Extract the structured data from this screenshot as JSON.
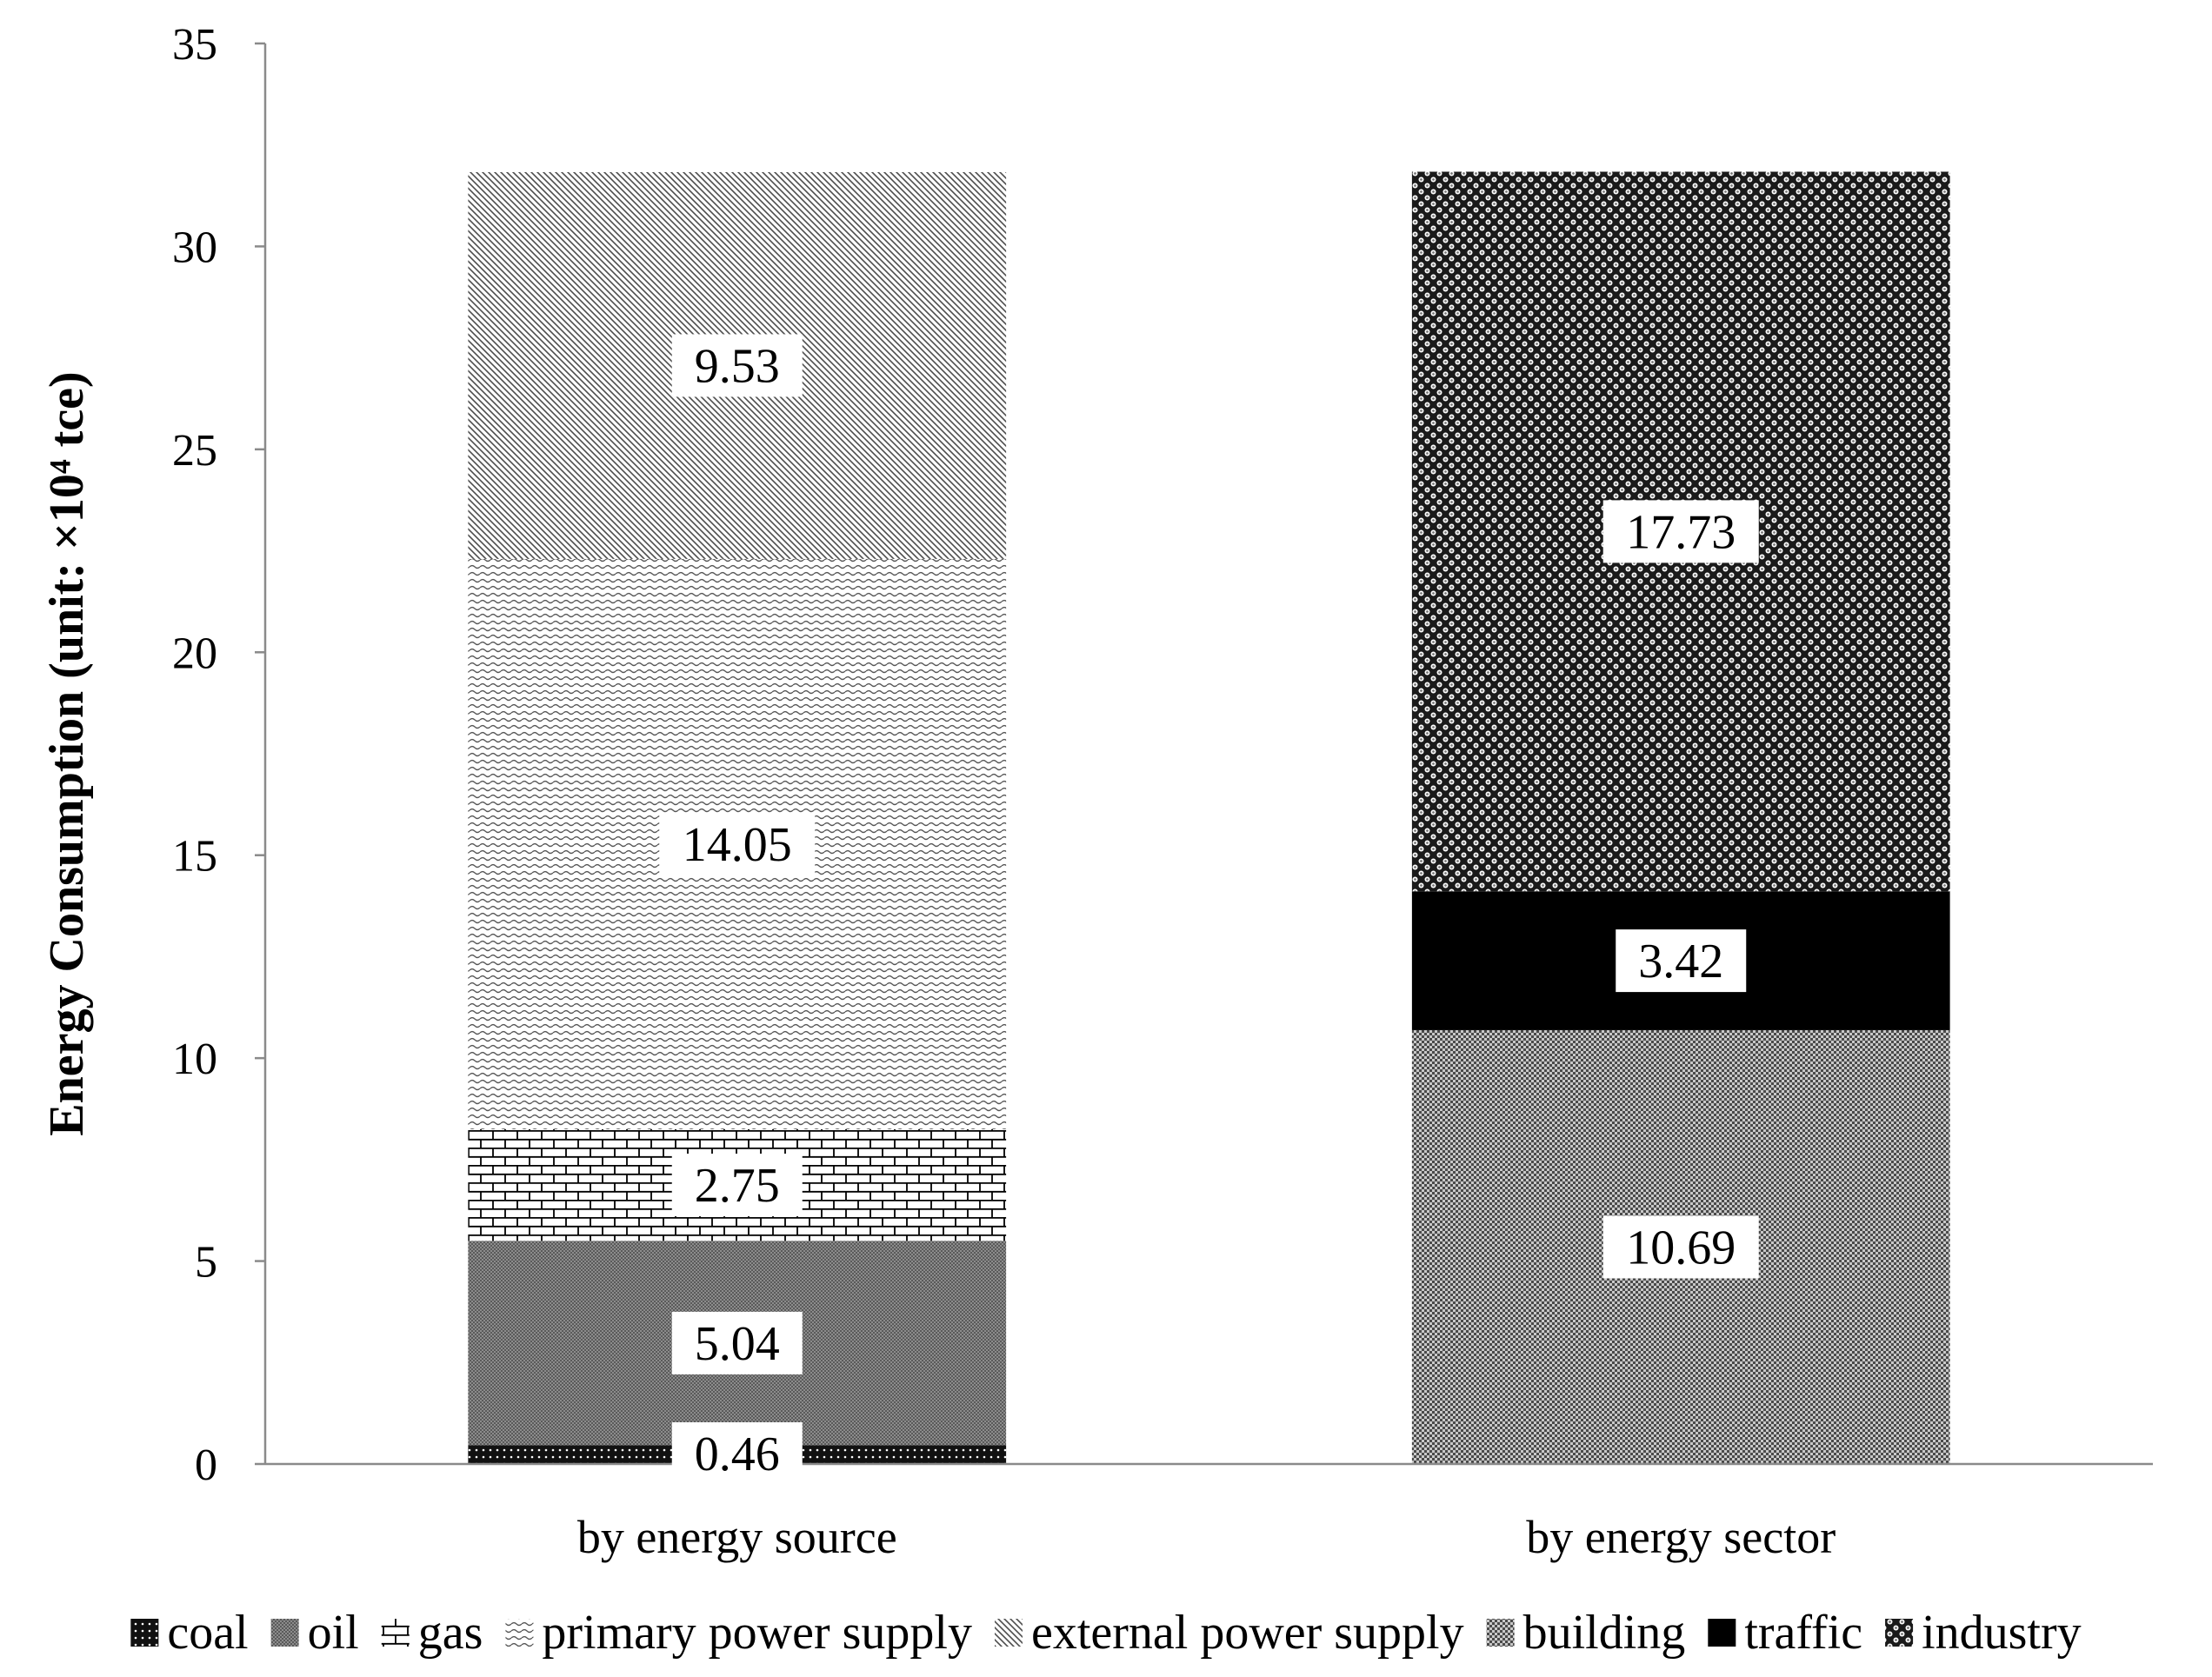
{
  "chart_data": {
    "type": "bar",
    "stacked": true,
    "ylabel": "Energy Consumption (unit: ×10⁴ tce)",
    "xlabel": "",
    "ylim": [
      0,
      35
    ],
    "yticks": [
      "0",
      "5",
      "10",
      "15",
      "20",
      "25",
      "30",
      "35"
    ],
    "grid": false,
    "legend_position": "bottom",
    "categories": [
      "by energy source",
      "by energy sector"
    ],
    "series": [
      {
        "name": "coal",
        "pattern": "dots-black",
        "values": [
          0.46,
          null
        ],
        "labels": [
          "0.46",
          ""
        ]
      },
      {
        "name": "oil",
        "pattern": "fine-gray",
        "values": [
          5.04,
          null
        ],
        "labels": [
          "5.04",
          ""
        ]
      },
      {
        "name": "gas",
        "pattern": "brick",
        "values": [
          2.75,
          null
        ],
        "labels": [
          "2.75",
          ""
        ]
      },
      {
        "name": "primary power supply",
        "pattern": "wave",
        "values": [
          14.05,
          null
        ],
        "labels": [
          "14.05",
          ""
        ]
      },
      {
        "name": "external power supply",
        "pattern": "diagonal",
        "values": [
          9.53,
          null
        ],
        "labels": [
          "9.53",
          ""
        ]
      },
      {
        "name": "building",
        "pattern": "checker",
        "values": [
          null,
          10.69
        ],
        "labels": [
          "",
          "10.69"
        ]
      },
      {
        "name": "traffic",
        "pattern": "solid-black",
        "values": [
          null,
          3.42
        ],
        "labels": [
          "",
          "3.42"
        ]
      },
      {
        "name": "industry",
        "pattern": "sphere-dots",
        "values": [
          null,
          17.73
        ],
        "labels": [
          "",
          "17.73"
        ]
      }
    ]
  }
}
